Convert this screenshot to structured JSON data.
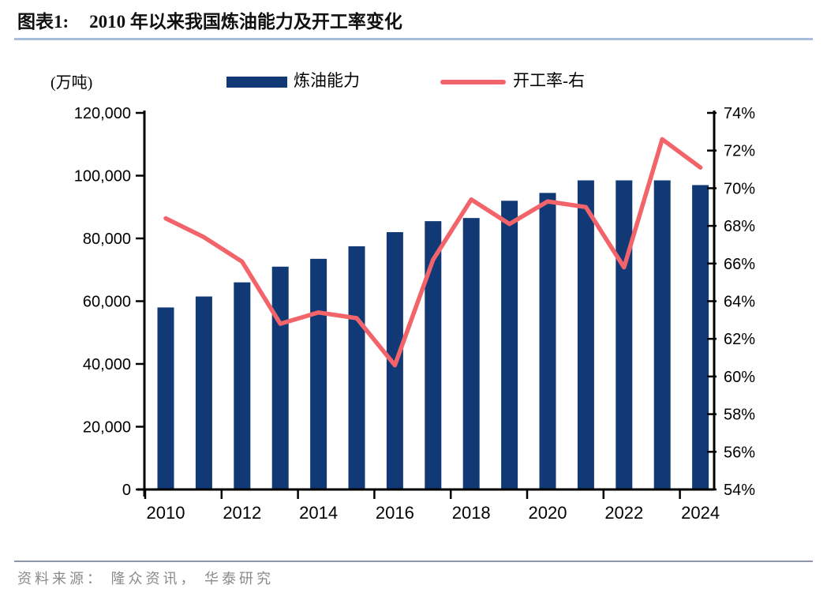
{
  "header": {
    "figure_label": "图表1:",
    "title": "2010 年以来我国炼油能力及开工率变化"
  },
  "legend": {
    "bar_label": "炼油能力",
    "line_label": "开工率-右"
  },
  "source": "资料来源： 隆众资讯， 华泰研究",
  "colors": {
    "bar": "#113976",
    "line": "#F2636A",
    "axis": "#000000",
    "tick_text": "#000000",
    "title_underline": "#A6BED9",
    "source_divider": "#8E96A8",
    "source_text": "#8A8A8A"
  },
  "chart_data": {
    "type": "bar",
    "title": "2010 年以来我国炼油能力及开工率变化",
    "categories": [
      2010,
      2011,
      2012,
      2013,
      2014,
      2015,
      2016,
      2017,
      2018,
      2019,
      2020,
      2021,
      2022,
      2023,
      2024
    ],
    "series": [
      {
        "name": "炼油能力",
        "type": "bar",
        "axis": "left",
        "values": [
          58000,
          61500,
          66000,
          71000,
          73500,
          77500,
          82000,
          85500,
          86500,
          92000,
          94500,
          98500,
          98500,
          98500,
          97000
        ]
      },
      {
        "name": "开工率-右",
        "type": "line",
        "axis": "right",
        "values": [
          68.4,
          67.4,
          66.1,
          62.8,
          63.4,
          63.1,
          60.6,
          66.2,
          69.4,
          68.1,
          69.3,
          69.0,
          65.8,
          72.6,
          71.1
        ]
      }
    ],
    "left_axis": {
      "label": "(万吨)",
      "min": 0,
      "max": 120000,
      "step": 20000,
      "tick_labels": [
        "0",
        "20,000",
        "40,000",
        "60,000",
        "80,000",
        "100,000",
        "120,000"
      ]
    },
    "right_axis": {
      "min": 54,
      "max": 74,
      "step": 2,
      "tick_labels": [
        "54%",
        "56%",
        "58%",
        "60%",
        "62%",
        "64%",
        "66%",
        "68%",
        "70%",
        "72%",
        "74%"
      ]
    },
    "x_tick_labels": [
      "2010",
      "2012",
      "2014",
      "2016",
      "2018",
      "2020",
      "2022",
      "2024"
    ],
    "grid": false,
    "legend_position": "top"
  }
}
